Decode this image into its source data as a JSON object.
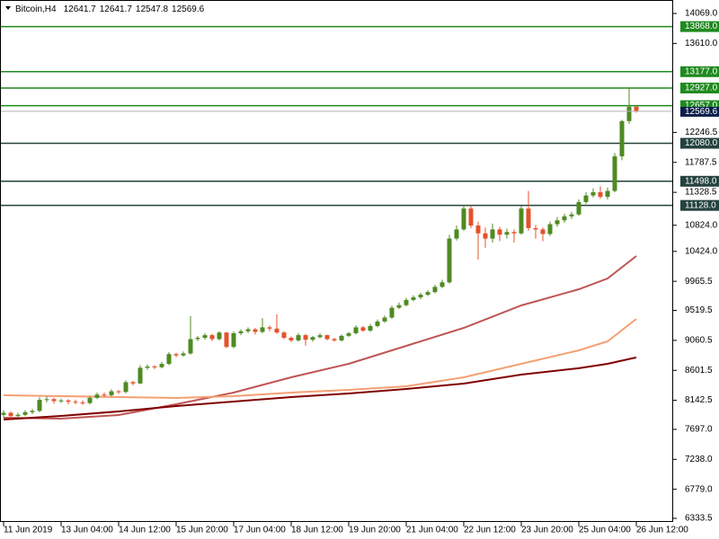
{
  "chart_data": {
    "type": "candlestick",
    "title": "Bitcoin,H4",
    "xlim": [
      -0.5,
      93
    ],
    "xticks": [
      {
        "value": 0,
        "label": "11 Jun 2019"
      },
      {
        "value": 8,
        "label": "13 Jun 04:00"
      },
      {
        "value": 16,
        "label": "14 Jun 12:00"
      },
      {
        "value": 24,
        "label": "15 Jun 20:00"
      },
      {
        "value": 32,
        "label": "17 Jun 04:00"
      },
      {
        "value": 40,
        "label": "18 Jun 12:00"
      },
      {
        "value": 48,
        "label": "19 Jun 20:00"
      },
      {
        "value": 56,
        "label": "21 Jun 04:00"
      },
      {
        "value": 64,
        "label": "22 Jun 12:00"
      },
      {
        "value": 72,
        "label": "23 Jun 20:00"
      },
      {
        "value": 80,
        "label": "25 Jun 04:00"
      },
      {
        "value": 88,
        "label": "26 Jun 12:00"
      }
    ],
    "ylim": [
      6333.5,
      14069
    ],
    "yticks": [
      {
        "value": 14069,
        "label": "14069.0"
      },
      {
        "value": 13610,
        "label": "13610.0"
      },
      12246.5,
      11787.5,
      11328.5,
      {
        "value": 10824,
        "label": "10824.0"
      },
      {
        "value": 10424,
        "label": "10424.0"
      },
      9965.5,
      9519.5,
      9060.5,
      8601.5,
      8142.5,
      {
        "value": 7697,
        "label": "7697.0"
      },
      {
        "value": 7238,
        "label": "7238.0"
      },
      {
        "value": 6779,
        "label": "6779.0"
      },
      6333.5
    ],
    "open": [
      7920,
      7950,
      7900,
      7920,
      7960,
      7980,
      8150,
      8160,
      8130,
      8140,
      8120,
      8110,
      8100,
      8180,
      8230,
      8220,
      8280,
      8270,
      8420,
      8400,
      8640,
      8660,
      8650,
      8700,
      8850,
      8830,
      8860,
      9080,
      9100,
      9140,
      9080,
      9180,
      8960,
      9170,
      9200,
      9230,
      9190,
      9260,
      9240,
      9180,
      9100,
      9060,
      9140,
      9070,
      9110,
      9140,
      9080,
      9060,
      9130,
      9170,
      9260,
      9210,
      9280,
      9350,
      9410,
      9560,
      9600,
      9680,
      9720,
      9760,
      9800,
      9880,
      9950,
      10620,
      10760,
      11080,
      10820,
      10700,
      10620,
      10760,
      10680,
      10720,
      10700,
      11080,
      10780,
      10760,
      10690,
      10840,
      10900,
      10960,
      10990,
      11180,
      11280,
      11330,
      11260,
      11350,
      11880,
      12420,
      12641.7
    ],
    "high": [
      7990,
      7970,
      7950,
      7990,
      8010,
      8190,
      8200,
      8180,
      8170,
      8160,
      8150,
      8140,
      8210,
      8260,
      8260,
      8310,
      8300,
      8450,
      8440,
      8680,
      8690,
      8680,
      8730,
      8880,
      8870,
      8890,
      9430,
      9130,
      9170,
      9160,
      9200,
      9190,
      9200,
      9230,
      9260,
      9250,
      9400,
      9290,
      9460,
      9200,
      9120,
      9170,
      9160,
      9130,
      9170,
      9150,
      9100,
      9150,
      9190,
      9290,
      9280,
      9310,
      9380,
      9440,
      9590,
      9640,
      9710,
      9750,
      9790,
      9830,
      9910,
      9990,
      10680,
      10820,
      11140,
      11130,
      10880,
      10790,
      10850,
      10800,
      10770,
      10760,
      11120,
      11350,
      10830,
      10790,
      10880,
      10950,
      11000,
      11030,
      11220,
      11330,
      11390,
      11420,
      11400,
      11930,
      12440,
      12927,
      12641.7
    ],
    "low": [
      7880,
      7860,
      7870,
      7900,
      7930,
      7960,
      8110,
      8090,
      8100,
      8080,
      8080,
      8070,
      8080,
      8160,
      8190,
      8200,
      8240,
      8250,
      8370,
      8390,
      8610,
      8620,
      8630,
      8680,
      8800,
      8810,
      8840,
      9050,
      9070,
      9050,
      9060,
      8940,
      8940,
      9140,
      9170,
      9150,
      9170,
      9200,
      9160,
      9080,
      9030,
      9040,
      8980,
      9040,
      9090,
      9060,
      9040,
      9040,
      9110,
      9150,
      9190,
      9190,
      9260,
      9330,
      9390,
      9540,
      9580,
      9660,
      9690,
      9740,
      9780,
      9860,
      9930,
      10590,
      10740,
      10780,
      10300,
      10480,
      10560,
      10580,
      10620,
      10560,
      10680,
      10740,
      10620,
      10580,
      10660,
      10800,
      10860,
      10920,
      10970,
      11150,
      11250,
      11230,
      11220,
      11330,
      11820,
      12380,
      12547.8
    ],
    "close": [
      7950,
      7900,
      7920,
      7960,
      7980,
      8150,
      8160,
      8130,
      8140,
      8120,
      8110,
      8100,
      8180,
      8230,
      8220,
      8280,
      8270,
      8420,
      8400,
      8640,
      8660,
      8650,
      8700,
      8850,
      8830,
      8860,
      9080,
      9100,
      9140,
      9080,
      9180,
      8960,
      9170,
      9200,
      9230,
      9190,
      9260,
      9240,
      9180,
      9100,
      9060,
      9140,
      9070,
      9110,
      9140,
      9080,
      9060,
      9130,
      9170,
      9260,
      9210,
      9280,
      9350,
      9410,
      9560,
      9600,
      9680,
      9720,
      9760,
      9800,
      9880,
      9950,
      10620,
      10760,
      11080,
      10820,
      10700,
      10620,
      10760,
      10680,
      10720,
      10700,
      11080,
      10780,
      10760,
      10690,
      10840,
      10900,
      10960,
      10990,
      11180,
      11280,
      11330,
      11260,
      11350,
      11880,
      12420,
      12640,
      12569.6
    ],
    "up_color": "#4e8a22",
    "down_color": "#e4512a",
    "moving_averages": [
      {
        "color": "#c05454",
        "x": [
          0,
          8,
          16,
          24,
          32,
          40,
          48,
          56,
          64,
          72,
          80,
          84,
          88
        ],
        "values": [
          7875,
          7861,
          7916,
          8082,
          8261,
          8495,
          8701,
          8976,
          9252,
          9596,
          9843,
          10009,
          10353
        ]
      },
      {
        "color": "#f4a072",
        "x": [
          0,
          8,
          16,
          24,
          32,
          40,
          48,
          56,
          64,
          72,
          80,
          84,
          88
        ],
        "values": [
          8219,
          8205,
          8192,
          8178,
          8205,
          8261,
          8302,
          8357,
          8495,
          8701,
          8908,
          9045,
          9389
        ]
      },
      {
        "color": "#800000",
        "x": [
          0,
          8,
          16,
          24,
          32,
          40,
          48,
          56,
          64,
          72,
          80,
          84,
          88
        ],
        "values": [
          7848,
          7902,
          7971,
          8054,
          8123,
          8192,
          8247,
          8316,
          8398,
          8536,
          8633,
          8701,
          8798
        ]
      }
    ],
    "levels": [
      {
        "value": 13868,
        "label": "13868.0",
        "color": "#1f8a1f"
      },
      {
        "value": 13177,
        "label": "13177.0",
        "color": "#1f8a1f"
      },
      {
        "value": 12927,
        "label": "12927.0",
        "color": "#1f8a1f"
      },
      {
        "value": 12657,
        "label": "12657.0",
        "color": "#1f8a1f"
      },
      {
        "value": 12080,
        "label": "12080.0",
        "color": "#24423f"
      },
      {
        "value": 11498,
        "label": "11498.0",
        "color": "#24423f"
      },
      {
        "value": 11128,
        "label": "11128.0",
        "color": "#24423f"
      }
    ],
    "current_price_color": "#0b1f4a"
  }
}
